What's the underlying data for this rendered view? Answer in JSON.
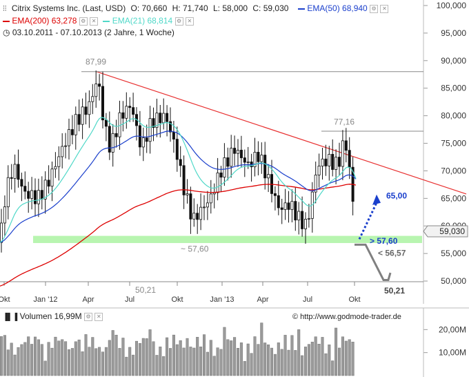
{
  "header": {
    "title": "Citrix Systems Inc. (Last, USD)",
    "open": "O: 70,660",
    "high": "H: 71,740",
    "low": "L: 58,000",
    "close": "C: 59,030",
    "ema50": "EMA(50)",
    "ema50_value": "68,940",
    "ema200": "EMA(200)",
    "ema200_value": "63,278",
    "ema21": "EMA(21)",
    "ema21_value": "68,814",
    "range": "03.10.2011 - 07.10.2013 (2 Jahre, 1 Woche)"
  },
  "volume_label": "Volumen",
  "volume_value": "16,99M",
  "source": "http://www.godmode-trader.de",
  "colors": {
    "ema200": "#dd0000",
    "ema50": "#1a3fcc",
    "ema21": "#4fd8c8",
    "trend": "#e83030",
    "support": "#b8f5b0",
    "arrow_up": "#1a3fcc",
    "arrow_down": "#808080",
    "candle": "#111111",
    "volume": "#9a9a9a"
  },
  "chart_data": {
    "type": "candlestick",
    "x_ticks": [
      "Okt",
      "Jan '12",
      "Apr",
      "Jul",
      "Okt",
      "Jan '13",
      "Apr",
      "Jul",
      "Okt"
    ],
    "y_ticks": [
      "100,000",
      "95,000",
      "90,000",
      "85,000",
      "80,000",
      "75,000",
      "70,000",
      "65,000",
      "60,000",
      "55,000",
      "50,000"
    ],
    "ylim": [
      48,
      100
    ],
    "last_price": "59,030",
    "annotations": {
      "high_level": "87,99",
      "mid_high": "77,16",
      "low_mark": "~ 57,60",
      "bottom_mark": "50,21",
      "target_up": "65,00",
      "support_label": "> 57,60",
      "break_label": "< 56,57",
      "target_down": "50,21"
    },
    "volume_ticks": [
      "20,00M",
      "10,00M"
    ],
    "key_prices": [
      {
        "week": "Oct 2011",
        "close": 57
      },
      {
        "week": "Nov 2011",
        "close": 69
      },
      {
        "week": "Jan 2012",
        "close": 66
      },
      {
        "week": "Apr 2012",
        "close": 86
      },
      {
        "week": "Jul 2012",
        "close": 76
      },
      {
        "week": "Oct 2012",
        "close": 62
      },
      {
        "week": "Jan 2013",
        "close": 68
      },
      {
        "week": "Apr 2013",
        "close": 67
      },
      {
        "week": "Jul 2013",
        "close": 63
      },
      {
        "week": "Sep 2013",
        "close": 76
      },
      {
        "week": "Oct 2013",
        "close": 59
      }
    ]
  }
}
